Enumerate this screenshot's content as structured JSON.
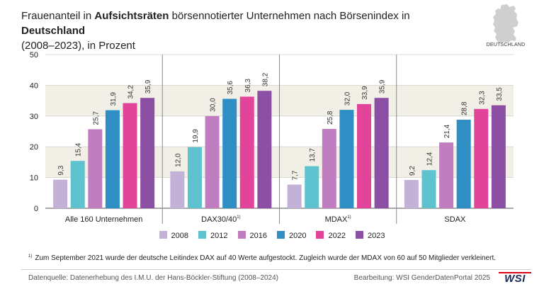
{
  "title": {
    "part1": "Frauenanteil in ",
    "bold1": "Aufsichtsräten",
    "part2": " börsennotierter Unternehmen nach Börsenindex in ",
    "bold2": "Deutschland",
    "line2": "(2008–2023), in Prozent"
  },
  "map_label": "DEUTSCHLAND",
  "footnote": {
    "marker": "1)",
    "text": "Zum September 2021 wurde der deutsche Leitindex DAX auf 40 Werte aufgestockt. Zugleich wurde der MDAX von 60 auf 50 Mitglieder verkleinert."
  },
  "source": "Datenquelle: Datenerhebung des I.M.U. der Hans-Böckler-Stiftung (2008–2024)",
  "credit": "Bearbeitung: WSI GenderDatenPortal 2025",
  "logo_text": "WSI",
  "colors": {
    "2008": "#c3b1d8",
    "2012": "#5fc3cf",
    "2016": "#c07ec0",
    "2020": "#2f8fc4",
    "2022": "#e2449a",
    "2023": "#8b4fa3",
    "band": "#f1efe6",
    "grid": "#d6d3c9",
    "separator": "#8a8a8a"
  },
  "chart_data": {
    "type": "bar",
    "title": "Frauenanteil in Aufsichtsräten börsennotierter Unternehmen nach Börsenindex in Deutschland (2008–2023), in Prozent",
    "categories": [
      "Alle 160 Unternehmen",
      "DAX30/40",
      "MDAX",
      "SDAX"
    ],
    "category_superscripts": [
      "",
      "1)",
      "1)",
      ""
    ],
    "series": [
      {
        "name": "2008",
        "values": [
          9.3,
          12.0,
          7.7,
          9.2
        ],
        "labels": [
          "9,3",
          "12,0",
          "7,7",
          "9,2"
        ]
      },
      {
        "name": "2012",
        "values": [
          15.4,
          19.9,
          13.7,
          12.4
        ],
        "labels": [
          "15,4",
          "19,9",
          "13,7",
          "12,4"
        ]
      },
      {
        "name": "2016",
        "values": [
          25.7,
          30.0,
          25.8,
          21.4
        ],
        "labels": [
          "25,7",
          "30,0",
          "25,8",
          "21,4"
        ]
      },
      {
        "name": "2020",
        "values": [
          31.9,
          35.6,
          32.0,
          28.8
        ],
        "labels": [
          "31,9",
          "35,6",
          "32,0",
          "28,8"
        ]
      },
      {
        "name": "2022",
        "values": [
          34.2,
          36.3,
          33.9,
          32.3
        ],
        "labels": [
          "34,2",
          "36,3",
          "33,9",
          "32,3"
        ]
      },
      {
        "name": "2023",
        "values": [
          35.9,
          38.2,
          35.9,
          33.5
        ],
        "labels": [
          "35,9",
          "38,2",
          "35,9",
          "33,5"
        ]
      }
    ],
    "yticks": [
      "0",
      "10",
      "20",
      "30",
      "40",
      "50"
    ],
    "ylim": [
      0,
      50
    ],
    "xlabel": "",
    "ylabel": "",
    "grid": true,
    "legend_position": "bottom"
  }
}
